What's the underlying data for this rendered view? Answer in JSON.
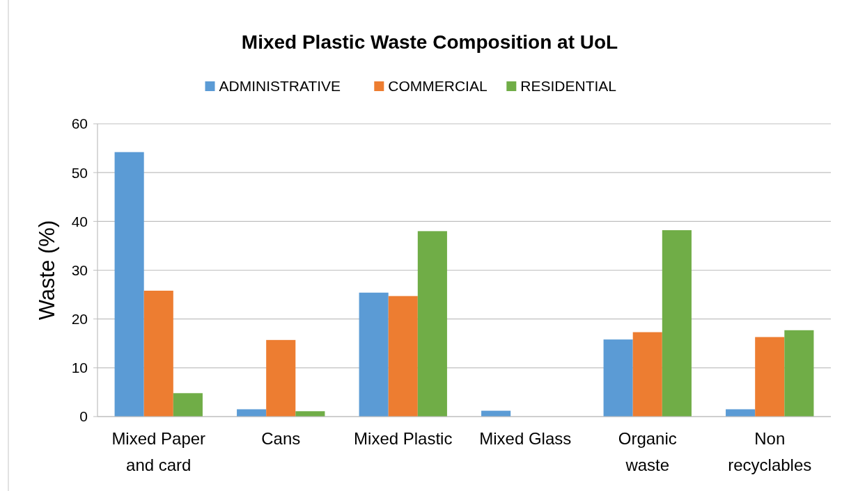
{
  "chart_data": {
    "type": "bar",
    "title": "Mixed Plastic Waste Composition at UoL",
    "ylabel": "Waste (%)",
    "categories": [
      "Mixed Paper\nand card",
      "Cans",
      "Mixed Plastic",
      "Mixed Glass",
      "Organic\nwaste",
      "Non\nrecyclables"
    ],
    "series": [
      {
        "name": "ADMINISTRATIVE",
        "color": "#5b9bd5",
        "values": [
          54.2,
          1.5,
          25.4,
          1.2,
          15.8,
          1.5
        ]
      },
      {
        "name": "COMMERCIAL",
        "color": "#ed7d31",
        "values": [
          25.8,
          15.7,
          24.7,
          0,
          17.3,
          16.3
        ]
      },
      {
        "name": "RESIDENTIAL",
        "color": "#70ad47",
        "values": [
          4.8,
          1.1,
          38.0,
          0,
          38.2,
          17.7
        ]
      }
    ],
    "ylim": [
      0,
      60
    ],
    "yticks": [
      0,
      10,
      20,
      30,
      40,
      50,
      60
    ],
    "grid": "y",
    "legend": "top"
  }
}
